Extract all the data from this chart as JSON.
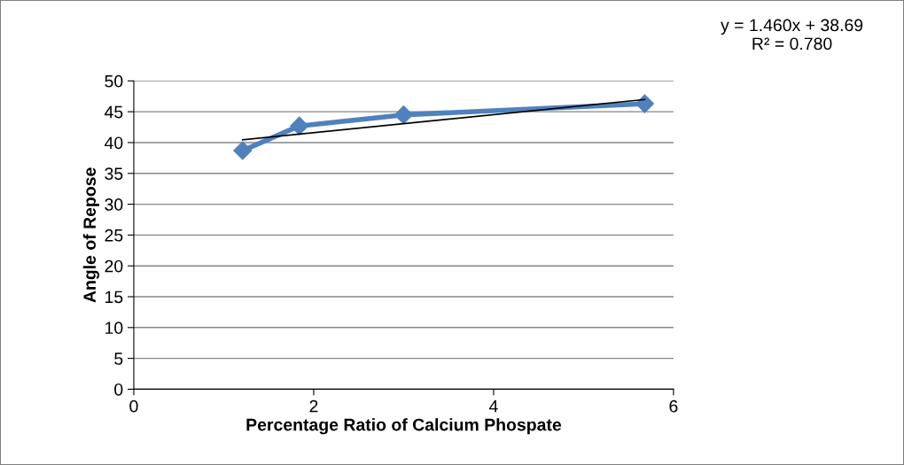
{
  "chart_data": {
    "type": "line",
    "xlabel": "Percentage Ratio of Calcium Phospate",
    "ylabel": "Angle of Repose",
    "xlim": [
      0,
      6
    ],
    "xticks": [
      0,
      2,
      4,
      6
    ],
    "ylim": [
      0,
      50
    ],
    "yticks": [
      0,
      5,
      10,
      15,
      20,
      25,
      30,
      35,
      40,
      45,
      50
    ],
    "grid": "y",
    "legend": false,
    "series": [
      {
        "color": "#4f81bd",
        "x": [
          1.21,
          1.84,
          3.0,
          5.68
        ],
        "values": [
          38.7,
          42.7,
          44.5,
          46.3
        ],
        "marker": "diamond",
        "line_style": "solid"
      },
      {
        "type": "line",
        "color": "#000000",
        "x": [
          1.21,
          5.68
        ],
        "values": [
          40.46,
          46.98
        ],
        "marker": "none",
        "line_style": "solid"
      }
    ],
    "annotations": [
      "y = 1.460x + 38.69\nR² = 0.780"
    ]
  }
}
